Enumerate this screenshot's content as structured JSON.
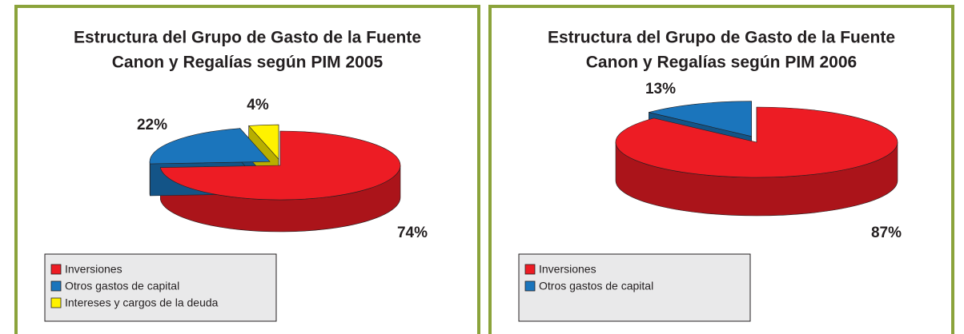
{
  "chart_data": [
    {
      "type": "pie3d",
      "title": [
        "Estructura del Grupo de Gasto de la Fuente",
        "Canon y Regalías según PIM 2005"
      ],
      "categories": [
        "Inversiones",
        "Otros gastos de capital",
        "Intereses y cargos de la deuda"
      ],
      "values": [
        74,
        22,
        4
      ],
      "value_labels": [
        "74%",
        "22%",
        "4%"
      ],
      "colors": [
        "#ed1c24",
        "#1b75bc",
        "#fff200"
      ],
      "legend": true
    },
    {
      "type": "pie3d",
      "title": [
        "Estructura del Grupo de Gasto de la Fuente",
        "Canon y Regalías según PIM 2006"
      ],
      "categories": [
        "Inversiones",
        "Otros gastos de capital"
      ],
      "values": [
        87,
        13
      ],
      "value_labels": [
        "87%",
        "13%"
      ],
      "colors": [
        "#ed1c24",
        "#1b75bc"
      ],
      "legend": true
    }
  ]
}
